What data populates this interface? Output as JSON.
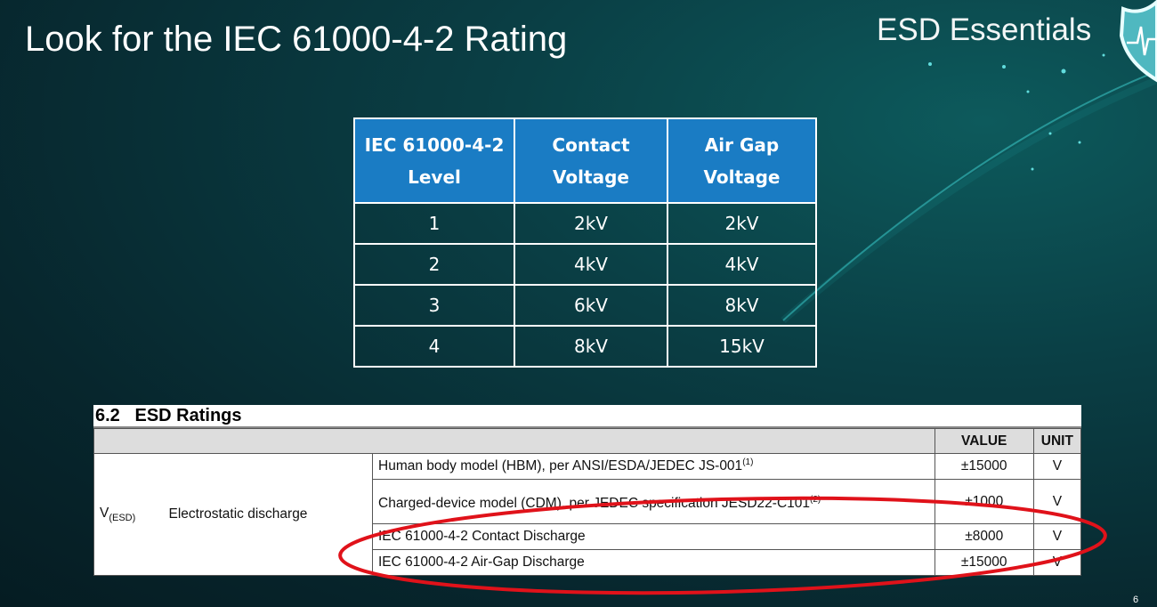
{
  "slide": {
    "title": "Look for the IEC 61000-4-2 Rating",
    "brand": "ESD Essentials",
    "page_number": "6"
  },
  "iec_table": {
    "headers": [
      "IEC 61000-4-2 Level",
      "Contact Voltage",
      "Air Gap Voltage"
    ],
    "rows": [
      [
        "1",
        "2kV",
        "2kV"
      ],
      [
        "2",
        "4kV",
        "4kV"
      ],
      [
        "3",
        "6kV",
        "8kV"
      ],
      [
        "4",
        "8kV",
        "15kV"
      ]
    ],
    "header_color": "#1a7cc4"
  },
  "esd_ratings": {
    "section": "6.2",
    "title": "ESD Ratings",
    "headers": {
      "value": "VALUE",
      "unit": "UNIT"
    },
    "symbol": "V",
    "symbol_sub": "(ESD)",
    "parameter": "Electrostatic discharge",
    "rows": [
      {
        "desc": "Human body model (HBM), per ANSI/ESDA/JEDEC JS-001",
        "note": "(1)",
        "value": "±15000",
        "unit": "V"
      },
      {
        "desc": "Charged-device model (CDM), per JEDEC specification JESD22-C101",
        "note": "(2)",
        "value": "±1000",
        "unit": "V"
      },
      {
        "desc": "IEC 61000-4-2 Contact Discharge",
        "note": "",
        "value": "±8000",
        "unit": "V"
      },
      {
        "desc": "IEC 61000-4-2 Air-Gap Discharge",
        "note": "",
        "value": "±15000",
        "unit": "V"
      }
    ],
    "highlight_color": "#e0121a"
  }
}
